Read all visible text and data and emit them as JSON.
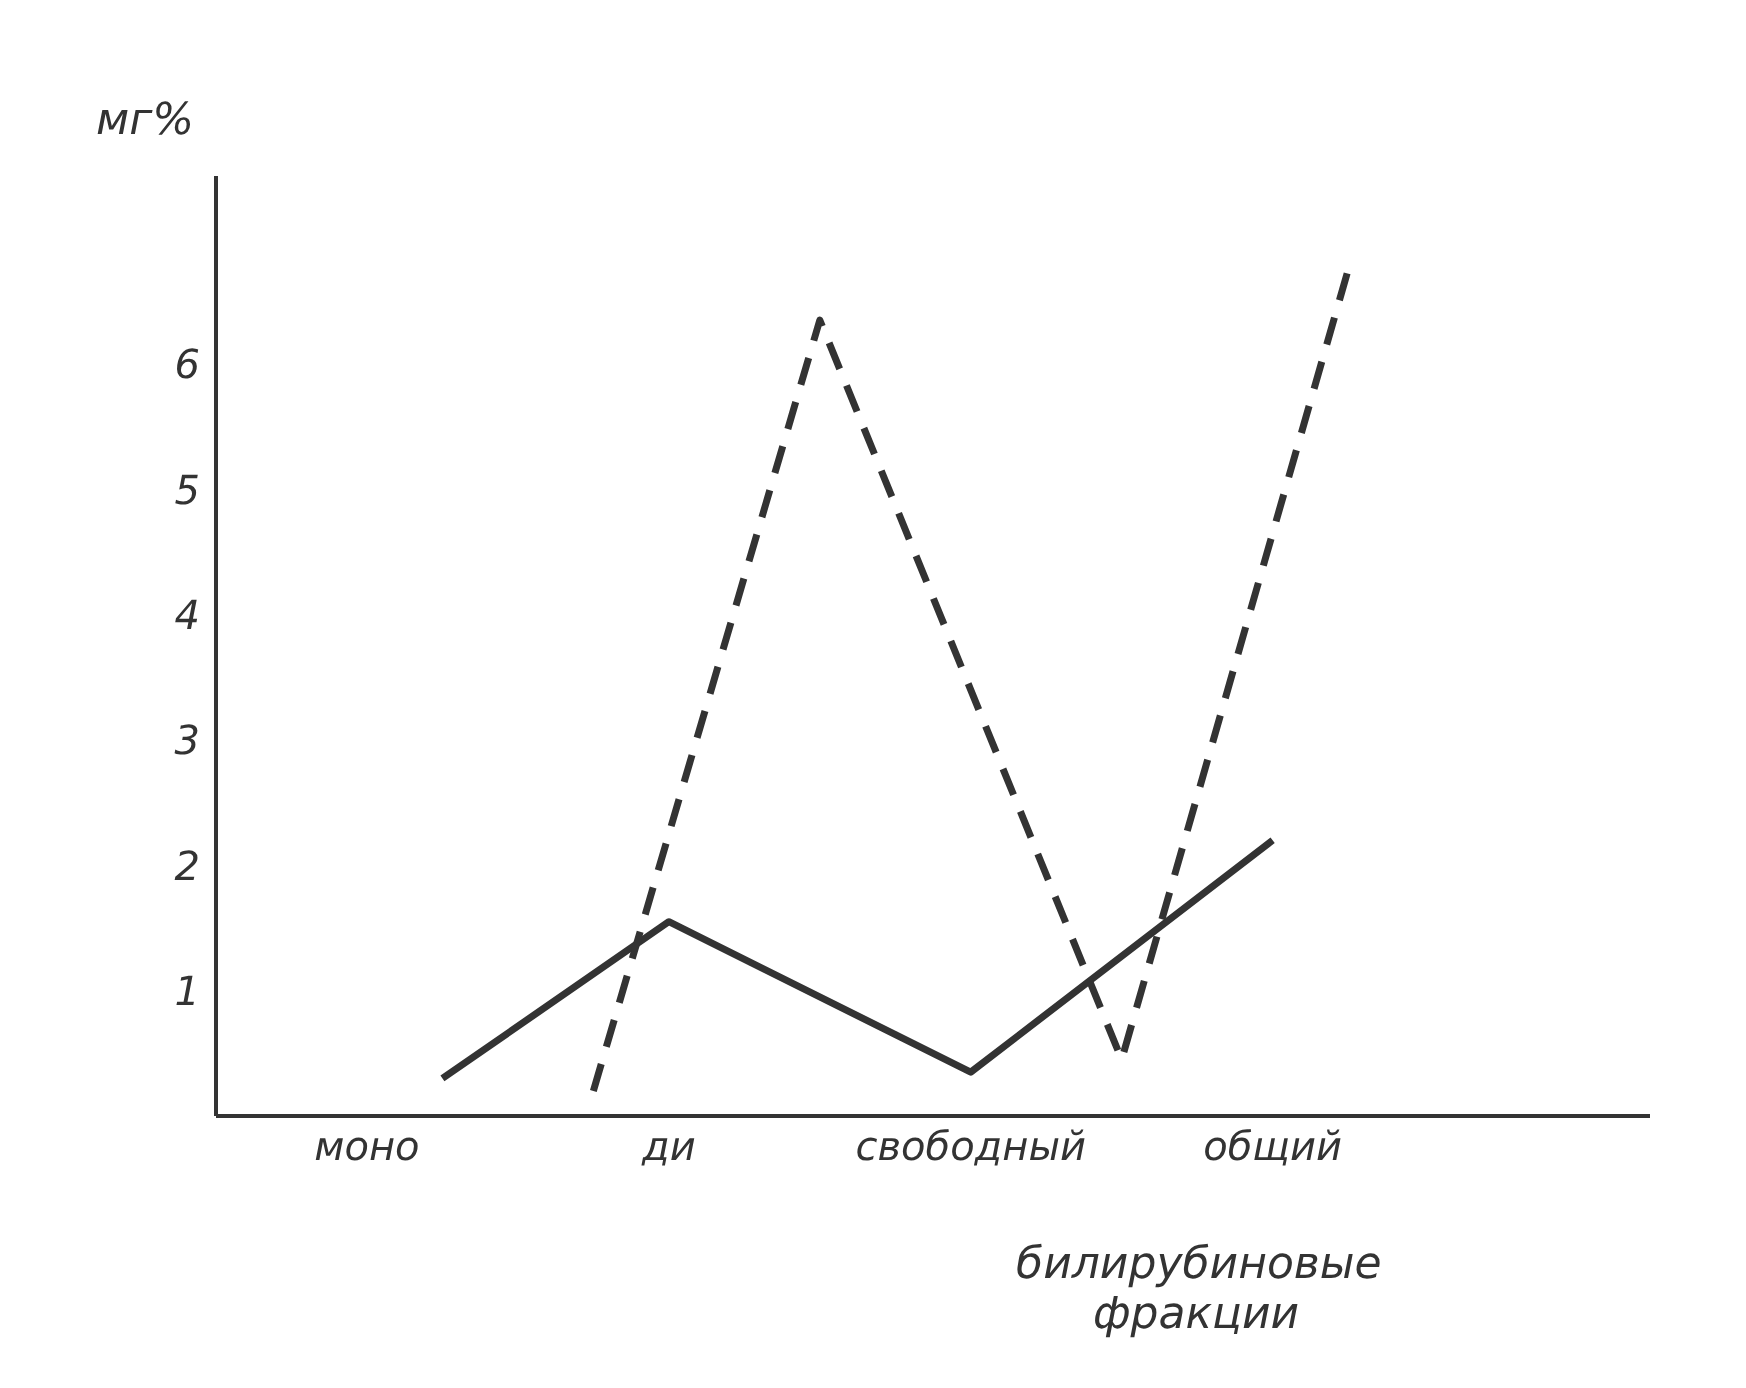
{
  "chart_data": {
    "type": "line",
    "xlabel": "билирубиновые фракции",
    "ylabel": "мг%",
    "categories": [
      null,
      null,
      "моно",
      null,
      null,
      null,
      "ди",
      null,
      null,
      null,
      "свободный",
      null,
      null,
      null,
      "общий",
      null,
      null,
      null,
      null,
      null
    ],
    "ylim": [
      0,
      7.5
    ],
    "yticks": [
      1,
      2,
      3,
      4,
      5,
      6
    ],
    "grid": false,
    "legend": false,
    "marker": "none",
    "series": [
      {
        "color": "#333333",
        "line_style": "solid",
        "values": [
          null,
          null,
          null,
          0.3,
          null,
          null,
          1.55,
          null,
          null,
          null,
          0.35,
          null,
          null,
          null,
          2.2,
          null,
          null,
          null,
          null,
          null
        ]
      },
      {
        "color": "#333333",
        "line_style": "dashed",
        "values": [
          null,
          null,
          null,
          null,
          null,
          0.2,
          null,
          null,
          6.35,
          null,
          null,
          null,
          0.45,
          null,
          null,
          6.75,
          null,
          null,
          null,
          null
        ]
      }
    ]
  }
}
